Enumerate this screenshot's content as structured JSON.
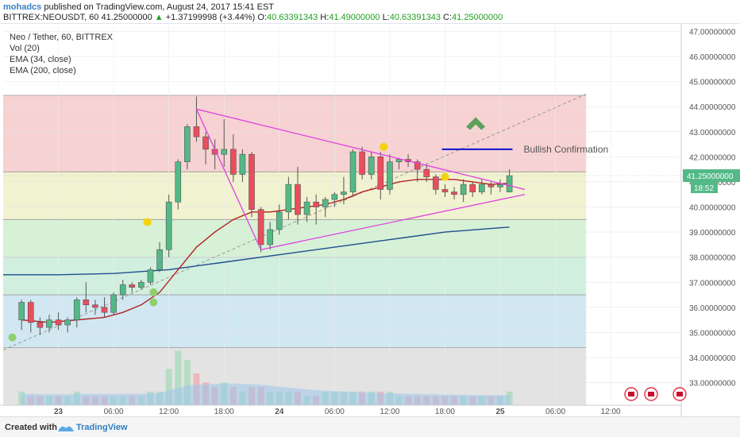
{
  "header": {
    "author": "mohadcs",
    "published": "published on TradingView.com, August 24, 2017 15:41 EST",
    "symbol": "BITTREX:NEOUSDT, 60",
    "last": "41.25000000",
    "change": "+1.37199998 (+3.44%)",
    "o_label": "O:",
    "o_value": "40.63391343",
    "h_label": "H:",
    "h_value": "41.49000000",
    "l_label": "L:",
    "l_value": "40.63391343",
    "c_label": "C:",
    "c_value": "41.25000000"
  },
  "legend": {
    "title": "Neo / Tether, 60, BITTREX",
    "vol": "Vol (20)",
    "ema34": "EMA (34, close)",
    "ema200": "EMA (200, close)"
  },
  "footer": {
    "created": "Created with",
    "brand": "TradingView"
  },
  "colors": {
    "up": "#53b987",
    "down": "#eb4d5c",
    "ema34": "#b22222",
    "ema200": "#1f4e8c",
    "triangle": "#e040e0",
    "confirm": "#1010d0",
    "arrow": "#5aa05a",
    "marker_yellow": "#f5d20a",
    "marker_green": "#90d070"
  },
  "chart_data": {
    "type": "candlestick",
    "title": "Neo / Tether, 60, BITTREX",
    "ylim": [
      32.1,
      47.3
    ],
    "y_ticks": [
      "47.00000000",
      "46.00000000",
      "45.00000000",
      "44.00000000",
      "43.00000000",
      "42.00000000",
      "41.00000000",
      "40.00000000",
      "39.00000000",
      "38.00000000",
      "37.00000000",
      "36.00000000",
      "35.00000000",
      "34.00000000",
      "33.00000000"
    ],
    "y_tick_values": [
      47,
      46,
      45,
      44,
      43,
      42,
      41,
      40,
      39,
      38,
      37,
      36,
      35,
      34,
      33
    ],
    "x_ticks": [
      {
        "label": "23",
        "t": 12
      },
      {
        "label": "06:00",
        "t": 30
      },
      {
        "label": "12:00",
        "t": 48
      },
      {
        "label": "18:00",
        "t": 66
      },
      {
        "label": "24",
        "t": 84
      },
      {
        "label": "06:00",
        "t": 102
      },
      {
        "label": "12:00",
        "t": 120
      },
      {
        "label": "18:00",
        "t": 138
      },
      {
        "label": "25",
        "t": 156
      },
      {
        "label": "06:00",
        "t": 174
      },
      {
        "label": "12:00",
        "t": 192
      }
    ],
    "t_range": [
      -6,
      215
    ],
    "last_price_label": "41.25000000",
    "countdown_label": "18:52",
    "last_price": 41.25,
    "candles": [
      {
        "t": 0,
        "o": 35.5,
        "h": 36.3,
        "l": 35.1,
        "c": 36.2
      },
      {
        "t": 3,
        "o": 36.2,
        "h": 36.3,
        "l": 35.0,
        "c": 35.4
      },
      {
        "t": 6,
        "o": 35.4,
        "h": 35.6,
        "l": 34.9,
        "c": 35.2
      },
      {
        "t": 9,
        "o": 35.2,
        "h": 35.7,
        "l": 35.0,
        "c": 35.5
      },
      {
        "t": 12,
        "o": 35.5,
        "h": 35.8,
        "l": 35.1,
        "c": 35.3
      },
      {
        "t": 15,
        "o": 35.3,
        "h": 35.6,
        "l": 35.0,
        "c": 35.5
      },
      {
        "t": 18,
        "o": 35.5,
        "h": 36.4,
        "l": 35.2,
        "c": 36.3
      },
      {
        "t": 21,
        "o": 36.3,
        "h": 37.0,
        "l": 35.8,
        "c": 36.1
      },
      {
        "t": 24,
        "o": 36.1,
        "h": 36.3,
        "l": 35.7,
        "c": 36.0
      },
      {
        "t": 27,
        "o": 36.0,
        "h": 36.4,
        "l": 35.6,
        "c": 35.8
      },
      {
        "t": 30,
        "o": 35.8,
        "h": 36.6,
        "l": 35.7,
        "c": 36.5
      },
      {
        "t": 33,
        "o": 36.5,
        "h": 37.1,
        "l": 36.3,
        "c": 36.9
      },
      {
        "t": 36,
        "o": 36.9,
        "h": 37.0,
        "l": 36.6,
        "c": 36.8
      },
      {
        "t": 39,
        "o": 36.8,
        "h": 37.1,
        "l": 36.7,
        "c": 37.0
      },
      {
        "t": 42,
        "o": 37.0,
        "h": 37.6,
        "l": 36.9,
        "c": 37.5
      },
      {
        "t": 45,
        "o": 37.5,
        "h": 38.6,
        "l": 37.4,
        "c": 38.3
      },
      {
        "t": 48,
        "o": 38.3,
        "h": 40.5,
        "l": 38.0,
        "c": 40.2
      },
      {
        "t": 51,
        "o": 40.2,
        "h": 41.9,
        "l": 39.9,
        "c": 41.8
      },
      {
        "t": 54,
        "o": 41.8,
        "h": 43.3,
        "l": 41.5,
        "c": 43.2
      },
      {
        "t": 57,
        "o": 43.2,
        "h": 44.4,
        "l": 42.6,
        "c": 42.8
      },
      {
        "t": 60,
        "o": 42.8,
        "h": 43.0,
        "l": 41.7,
        "c": 42.3
      },
      {
        "t": 63,
        "o": 42.3,
        "h": 42.7,
        "l": 41.5,
        "c": 42.1
      },
      {
        "t": 66,
        "o": 42.1,
        "h": 43.5,
        "l": 41.6,
        "c": 42.3
      },
      {
        "t": 69,
        "o": 42.3,
        "h": 42.9,
        "l": 41.0,
        "c": 41.3
      },
      {
        "t": 72,
        "o": 41.3,
        "h": 42.3,
        "l": 41.0,
        "c": 42.1
      },
      {
        "t": 75,
        "o": 42.1,
        "h": 42.2,
        "l": 39.6,
        "c": 39.9
      },
      {
        "t": 78,
        "o": 39.9,
        "h": 40.0,
        "l": 38.2,
        "c": 38.5
      },
      {
        "t": 81,
        "o": 38.5,
        "h": 39.4,
        "l": 38.3,
        "c": 39.1
      },
      {
        "t": 84,
        "o": 39.1,
        "h": 40.1,
        "l": 38.9,
        "c": 39.8
      },
      {
        "t": 87,
        "o": 39.8,
        "h": 41.2,
        "l": 39.5,
        "c": 40.9
      },
      {
        "t": 90,
        "o": 40.9,
        "h": 41.6,
        "l": 39.3,
        "c": 39.7
      },
      {
        "t": 93,
        "o": 39.7,
        "h": 40.4,
        "l": 39.4,
        "c": 40.2
      },
      {
        "t": 96,
        "o": 40.2,
        "h": 40.5,
        "l": 39.3,
        "c": 40.0
      },
      {
        "t": 99,
        "o": 40.0,
        "h": 40.4,
        "l": 39.6,
        "c": 40.3
      },
      {
        "t": 102,
        "o": 40.3,
        "h": 40.6,
        "l": 40.0,
        "c": 40.5
      },
      {
        "t": 105,
        "o": 40.5,
        "h": 41.2,
        "l": 40.1,
        "c": 40.6
      },
      {
        "t": 108,
        "o": 40.6,
        "h": 42.3,
        "l": 40.4,
        "c": 42.2
      },
      {
        "t": 111,
        "o": 42.2,
        "h": 42.4,
        "l": 41.1,
        "c": 41.3
      },
      {
        "t": 114,
        "o": 41.3,
        "h": 42.2,
        "l": 41.1,
        "c": 42.0
      },
      {
        "t": 117,
        "o": 42.0,
        "h": 42.2,
        "l": 40.3,
        "c": 40.7
      },
      {
        "t": 120,
        "o": 40.7,
        "h": 42.1,
        "l": 40.5,
        "c": 41.8
      },
      {
        "t": 123,
        "o": 41.8,
        "h": 41.9,
        "l": 41.5,
        "c": 41.9
      },
      {
        "t": 126,
        "o": 41.9,
        "h": 42.1,
        "l": 41.6,
        "c": 41.8
      },
      {
        "t": 129,
        "o": 41.8,
        "h": 41.9,
        "l": 41.0,
        "c": 41.5
      },
      {
        "t": 132,
        "o": 41.5,
        "h": 41.7,
        "l": 41.0,
        "c": 41.2
      },
      {
        "t": 135,
        "o": 41.2,
        "h": 41.3,
        "l": 40.5,
        "c": 40.7
      },
      {
        "t": 138,
        "o": 40.7,
        "h": 40.9,
        "l": 40.4,
        "c": 40.6
      },
      {
        "t": 141,
        "o": 40.6,
        "h": 40.8,
        "l": 40.3,
        "c": 40.5
      },
      {
        "t": 144,
        "o": 40.5,
        "h": 41.1,
        "l": 40.2,
        "c": 40.9
      },
      {
        "t": 147,
        "o": 40.9,
        "h": 41.0,
        "l": 40.4,
        "c": 40.6
      },
      {
        "t": 150,
        "o": 40.6,
        "h": 41.1,
        "l": 40.5,
        "c": 40.9
      },
      {
        "t": 153,
        "o": 40.9,
        "h": 41.0,
        "l": 40.5,
        "c": 40.8
      },
      {
        "t": 156,
        "o": 40.8,
        "h": 41.1,
        "l": 40.6,
        "c": 40.9
      },
      {
        "t": 159,
        "o": 40.6,
        "h": 41.5,
        "l": 40.6,
        "c": 41.25
      }
    ],
    "ema34": [
      [
        0,
        35.5
      ],
      [
        9,
        35.4
      ],
      [
        18,
        35.5
      ],
      [
        27,
        35.6
      ],
      [
        33,
        35.8
      ],
      [
        39,
        36.1
      ],
      [
        45,
        36.6
      ],
      [
        51,
        37.5
      ],
      [
        57,
        38.4
      ],
      [
        63,
        39.0
      ],
      [
        69,
        39.5
      ],
      [
        75,
        39.8
      ],
      [
        81,
        39.8
      ],
      [
        87,
        39.9
      ],
      [
        93,
        40.0
      ],
      [
        99,
        40.1
      ],
      [
        105,
        40.3
      ],
      [
        111,
        40.6
      ],
      [
        117,
        40.8
      ],
      [
        123,
        41.0
      ],
      [
        129,
        41.1
      ],
      [
        135,
        41.1
      ],
      [
        141,
        41.1
      ],
      [
        147,
        41.0
      ],
      [
        153,
        40.9
      ],
      [
        159,
        40.95
      ]
    ],
    "ema200": [
      [
        -6,
        37.3
      ],
      [
        12,
        37.3
      ],
      [
        30,
        37.35
      ],
      [
        48,
        37.5
      ],
      [
        66,
        37.8
      ],
      [
        84,
        38.1
      ],
      [
        102,
        38.4
      ],
      [
        120,
        38.7
      ],
      [
        138,
        39.0
      ],
      [
        159,
        39.2
      ]
    ],
    "ema_join": [
      [
        51,
        37.5
      ],
      [
        57,
        38.4
      ]
    ],
    "fib_levels": [
      44.45,
      41.4,
      39.5,
      38.0,
      36.5,
      34.4
    ],
    "fib_fills": [
      "#f6caca",
      "#eef0c8",
      "#cfeecf",
      "#c9ecd9",
      "#c9e3f0",
      "#dedede"
    ],
    "triangle_upper": [
      [
        57,
        43.9
      ],
      [
        164,
        40.7
      ]
    ],
    "triangle_lower": [
      [
        78,
        38.3
      ],
      [
        164,
        40.5
      ]
    ],
    "triangle_mid": [
      [
        57,
        43.9
      ],
      [
        78,
        38.3
      ]
    ],
    "dashed_trend": [
      [
        -6,
        34.3
      ],
      [
        184,
        44.5
      ]
    ],
    "confirm_line": {
      "t1": 137,
      "t2": 160,
      "y": 42.3
    },
    "confirm_label": "Bullish Confirmation",
    "arrow": {
      "t": 148,
      "y": 43.2
    },
    "markers_yellow": [
      [
        41,
        39.4
      ],
      [
        118,
        42.4
      ],
      [
        138,
        41.2
      ]
    ],
    "markers_green": [
      [
        43,
        36.6
      ],
      [
        43,
        36.2
      ],
      [
        -3,
        34.8
      ]
    ],
    "volume": [
      3,
      2,
      2,
      2,
      2,
      2,
      3,
      2,
      2,
      2,
      2,
      2,
      2,
      2,
      3,
      3,
      8,
      12,
      10,
      7,
      5,
      4,
      5,
      4,
      3,
      4,
      4,
      3,
      3,
      3,
      3,
      2,
      2,
      3,
      3,
      3,
      3,
      3,
      3,
      3,
      3,
      2,
      2,
      2,
      2,
      2,
      2,
      2,
      2,
      2,
      2,
      2,
      2,
      3
    ],
    "vol_ma": [
      2.5,
      2.5,
      2.4,
      2.4,
      2.4,
      2.4,
      2.5,
      2.5,
      2.5,
      2.5,
      2.5,
      2.5,
      2.5,
      2.5,
      2.6,
      2.7,
      3.2,
      3.8,
      4.3,
      4.5,
      4.6,
      4.7,
      4.8,
      4.8,
      4.7,
      4.6,
      4.5,
      4.3,
      4.1,
      3.9,
      3.7,
      3.5,
      3.3,
      3.2,
      3.1,
      3.0,
      2.9,
      2.8,
      2.8,
      2.7,
      2.6,
      2.6,
      2.5,
      2.5,
      2.4,
      2.4,
      2.3,
      2.3,
      2.3,
      2.2,
      2.2,
      2.2,
      2.2,
      2.2
    ]
  }
}
